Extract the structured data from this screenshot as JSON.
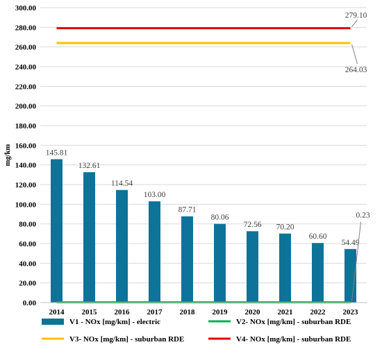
{
  "chart_data": {
    "type": "bar",
    "categories": [
      "2014",
      "2015",
      "2016",
      "2017",
      "2018",
      "2019",
      "2020",
      "2021",
      "2022",
      "2023"
    ],
    "ylabel": "mg/km",
    "ylim": [
      0,
      300
    ],
    "yticks": [
      "0.00",
      "20.00",
      "40.00",
      "60.00",
      "80.00",
      "100.00",
      "120.00",
      "140.00",
      "160.00",
      "180.00",
      "200.00",
      "220.00",
      "240.00",
      "260.00",
      "280.00",
      "300.00"
    ],
    "grid": true,
    "legend_position": "bottom",
    "series": [
      {
        "name": "V1 - NOx [mg/km] - electric",
        "kind": "bar",
        "color": "#0e7399",
        "values": [
          145.81,
          132.61,
          114.54,
          103.0,
          87.71,
          80.06,
          72.56,
          70.2,
          60.6,
          54.49
        ],
        "labels": [
          "145.81",
          "132.61",
          "114.54",
          "103.00",
          "87.71",
          "80.06",
          "72.56",
          "70.20",
          "60.60",
          "54.49"
        ]
      },
      {
        "name": "V2- NOx [mg/km] - suburban RDE",
        "kind": "line",
        "color": "#00b050",
        "values": [
          0.23,
          0.23,
          0.23,
          0.23,
          0.23,
          0.23,
          0.23,
          0.23,
          0.23,
          0.23
        ],
        "callout": "0.23"
      },
      {
        "name": "V3- NOx [mg/km] - suburban RDE",
        "kind": "line",
        "color": "#ffc000",
        "values": [
          264.03,
          264.03,
          264.03,
          264.03,
          264.03,
          264.03,
          264.03,
          264.03,
          264.03,
          264.03
        ],
        "callout": "264.03"
      },
      {
        "name": "V4- NOx [mg/km] - suburban RDE",
        "kind": "line",
        "color": "#e00000",
        "values": [
          279.1,
          279.1,
          279.1,
          279.1,
          279.1,
          279.1,
          279.1,
          279.1,
          279.1,
          279.1
        ],
        "callout": "279.10"
      }
    ]
  }
}
